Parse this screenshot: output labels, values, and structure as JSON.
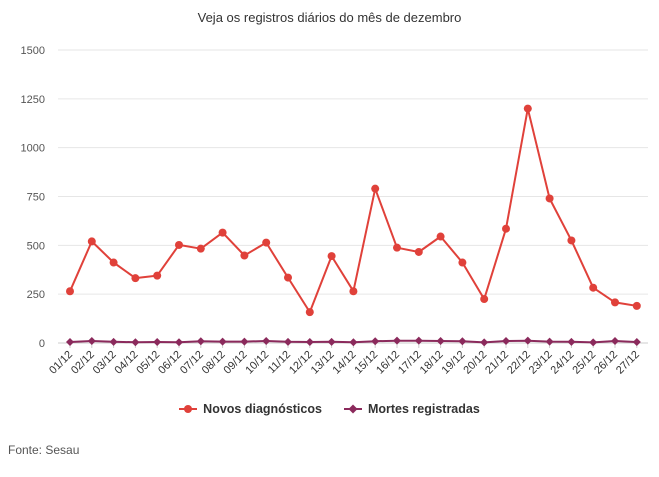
{
  "chart_data": {
    "type": "line",
    "title": "Veja os registros diários do mês de dezembro",
    "xlabel": "",
    "ylabel": "",
    "ylim": [
      0,
      1500
    ],
    "yticks": [
      0,
      250,
      500,
      750,
      1000,
      1250,
      1500
    ],
    "grid": true,
    "legend_position": "bottom",
    "categories": [
      "01/12",
      "02/12",
      "03/12",
      "04/12",
      "05/12",
      "06/12",
      "07/12",
      "08/12",
      "09/12",
      "10/12",
      "11/12",
      "12/12",
      "13/12",
      "14/12",
      "15/12",
      "16/12",
      "17/12",
      "18/12",
      "19/12",
      "20/12",
      "21/12",
      "22/12",
      "23/12",
      "24/12",
      "25/12",
      "26/12",
      "27/12"
    ],
    "series": [
      {
        "name": "Novos diagnósticos",
        "color": "#e0413a",
        "marker": "circle",
        "values": [
          265,
          520,
          412,
          332,
          345,
          502,
          483,
          565,
          448,
          514,
          335,
          158,
          445,
          265,
          790,
          488,
          466,
          545,
          412,
          225,
          585,
          1200,
          740,
          525,
          283,
          208,
          190
        ]
      },
      {
        "name": "Mortes registradas",
        "color": "#8b2a5c",
        "marker": "diamond",
        "values": [
          5,
          10,
          6,
          4,
          5,
          4,
          9,
          7,
          7,
          10,
          6,
          5,
          6,
          4,
          9,
          12,
          12,
          10,
          9,
          3,
          10,
          12,
          7,
          6,
          3,
          10,
          5
        ]
      }
    ]
  },
  "source": "Fonte: Sesau"
}
